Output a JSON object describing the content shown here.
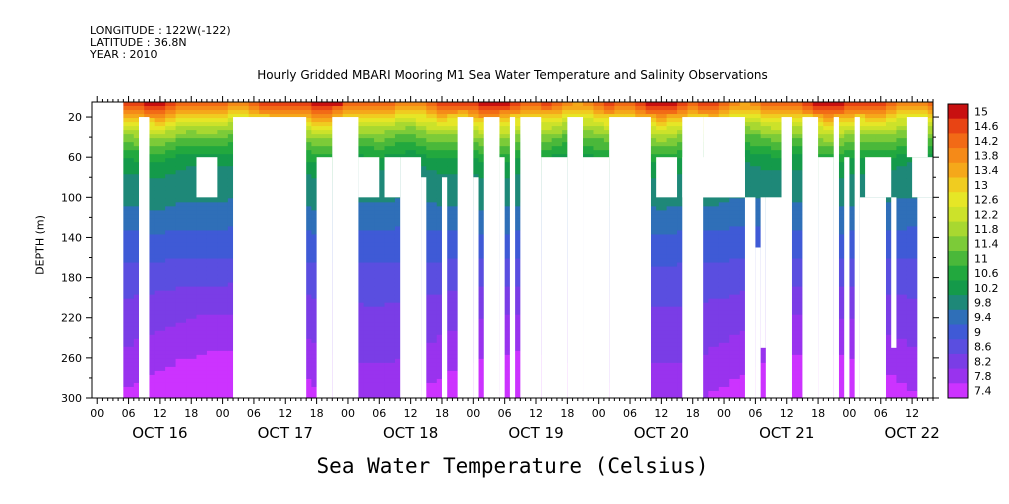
{
  "header": {
    "longitude": "LONGITUDE : 122W(-122)",
    "latitude": "LATITUDE : 36.8N",
    "year": "YEAR : 2010",
    "title": "Hourly Gridded MBARI Mooring M1 Sea Water Temperature and Salinity Observations"
  },
  "chart_data": {
    "type": "heatmap",
    "title": "Hourly Gridded MBARI Mooring M1 Sea Water Temperature and Salinity Observations",
    "xlabel": "",
    "ylabel": "DEPTH (m)",
    "bottom_label": "Sea Water Temperature (Celsius)",
    "x_unit": "hours since OCT 16 00",
    "xlim": [
      -1,
      160
    ],
    "ylim": [
      5,
      300
    ],
    "y_inverted": true,
    "yticks": [
      20,
      60,
      100,
      140,
      180,
      220,
      260,
      300
    ],
    "hour_tick_labels": [
      "00",
      "06",
      "12",
      "18"
    ],
    "day_labels": [
      "OCT 16",
      "OCT 17",
      "OCT 18",
      "OCT 19",
      "OCT 20",
      "OCT 21",
      "OCT 22"
    ],
    "colorbar": {
      "levels": [
        7.4,
        7.8,
        8.2,
        8.6,
        9,
        9.4,
        9.8,
        10.2,
        10.6,
        11,
        11.4,
        11.8,
        12.2,
        12.6,
        13,
        13.4,
        13.8,
        14.2,
        14.6,
        15
      ],
      "labels": [
        "15",
        "14.6",
        "14.2",
        "13.8",
        "13.4",
        "13",
        "12.6",
        "12.2",
        "11.8",
        "11.4",
        "11",
        "10.6",
        "10.2",
        "9.8",
        "9.4",
        "9",
        "8.6",
        "8.2",
        "7.8",
        "7.4"
      ],
      "colors": [
        "#cc33ff",
        "#9933ee",
        "#7a3de6",
        "#5a4ee0",
        "#3f5ad6",
        "#2f6fb8",
        "#1e8878",
        "#149a4a",
        "#22a83e",
        "#4ab83a",
        "#7ccb38",
        "#a8d830",
        "#cce22a",
        "#e6e626",
        "#f0cc20",
        "#f5a81a",
        "#f58a18",
        "#f26a16",
        "#e84414",
        "#c81010"
      ]
    },
    "profile": {
      "depths": [
        5,
        12,
        20,
        30,
        40,
        50,
        60,
        70,
        80,
        100,
        120,
        140,
        160,
        180,
        200,
        220,
        240,
        260,
        280,
        300
      ],
      "temps": [
        14.8,
        14.1,
        13.2,
        12.3,
        11.6,
        11.1,
        10.6,
        10.3,
        10.1,
        9.9,
        9.6,
        9.3,
        9.05,
        8.8,
        8.6,
        8.4,
        8.25,
        8.1,
        7.9,
        7.7
      ]
    },
    "gaps": [
      {
        "x": [
          -1,
          5
        ],
        "y": [
          5,
          300
        ]
      },
      {
        "x": [
          8,
          10
        ],
        "y": [
          20,
          300
        ]
      },
      {
        "x": [
          19,
          23
        ],
        "y": [
          60,
          100
        ]
      },
      {
        "x": [
          26,
          40
        ],
        "y": [
          20,
          300
        ]
      },
      {
        "x": [
          42,
          45
        ],
        "y": [
          60,
          300
        ]
      },
      {
        "x": [
          45,
          50
        ],
        "y": [
          20,
          300
        ]
      },
      {
        "x": [
          50,
          54
        ],
        "y": [
          60,
          100
        ]
      },
      {
        "x": [
          55,
          58
        ],
        "y": [
          60,
          100
        ]
      },
      {
        "x": [
          58,
          62
        ],
        "y": [
          60,
          300
        ]
      },
      {
        "x": [
          62,
          63
        ],
        "y": [
          80,
          300
        ]
      },
      {
        "x": [
          66,
          67
        ],
        "y": [
          80,
          300
        ]
      },
      {
        "x": [
          69,
          72
        ],
        "y": [
          20,
          300
        ]
      },
      {
        "x": [
          72,
          73
        ],
        "y": [
          80,
          300
        ]
      },
      {
        "x": [
          74,
          77
        ],
        "y": [
          20,
          300
        ]
      },
      {
        "x": [
          77,
          78
        ],
        "y": [
          60,
          300
        ]
      },
      {
        "x": [
          79,
          80
        ],
        "y": [
          20,
          300
        ]
      },
      {
        "x": [
          81,
          85
        ],
        "y": [
          20,
          300
        ]
      },
      {
        "x": [
          85,
          90
        ],
        "y": [
          60,
          300
        ]
      },
      {
        "x": [
          90,
          93
        ],
        "y": [
          20,
          300
        ]
      },
      {
        "x": [
          93,
          98
        ],
        "y": [
          60,
          300
        ]
      },
      {
        "x": [
          98,
          106
        ],
        "y": [
          20,
          300
        ]
      },
      {
        "x": [
          104,
          106
        ],
        "y": [
          80,
          300
        ]
      },
      {
        "x": [
          107,
          111
        ],
        "y": [
          60,
          100
        ]
      },
      {
        "x": [
          112,
          124
        ],
        "y": [
          60,
          100
        ]
      },
      {
        "x": [
          112,
          116
        ],
        "y": [
          20,
          300
        ]
      },
      {
        "x": [
          116,
          124
        ],
        "y": [
          20,
          100
        ]
      },
      {
        "x": [
          124,
          126
        ],
        "y": [
          100,
          300
        ]
      },
      {
        "x": [
          126,
          127
        ],
        "y": [
          150,
          300
        ]
      },
      {
        "x": [
          127,
          128
        ],
        "y": [
          100,
          250
        ]
      },
      {
        "x": [
          128,
          132
        ],
        "y": [
          100,
          300
        ]
      },
      {
        "x": [
          131,
          133
        ],
        "y": [
          20,
          300
        ]
      },
      {
        "x": [
          135,
          138
        ],
        "y": [
          20,
          300
        ]
      },
      {
        "x": [
          138,
          141
        ],
        "y": [
          60,
          300
        ]
      },
      {
        "x": [
          141,
          142
        ],
        "y": [
          20,
          300
        ]
      },
      {
        "x": [
          143,
          144
        ],
        "y": [
          60,
          300
        ]
      },
      {
        "x": [
          145,
          146
        ],
        "y": [
          20,
          300
        ]
      },
      {
        "x": [
          146,
          151
        ],
        "y": [
          100,
          300
        ]
      },
      {
        "x": [
          147,
          152
        ],
        "y": [
          60,
          100
        ]
      },
      {
        "x": [
          152,
          153
        ],
        "y": [
          100,
          250
        ]
      },
      {
        "x": [
          156,
          160
        ],
        "y": [
          60,
          100
        ]
      },
      {
        "x": [
          155,
          159
        ],
        "y": [
          20,
          60
        ]
      },
      {
        "x": [
          157,
          160
        ],
        "y": [
          100,
          300
        ]
      }
    ]
  }
}
